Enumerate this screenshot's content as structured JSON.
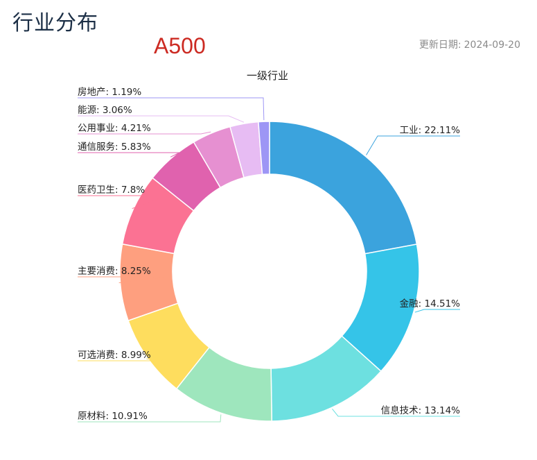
{
  "header": {
    "title": "行业分布",
    "index_name": "A500",
    "update_label": "更新日期:",
    "update_date": "2024-09-20"
  },
  "chart_data": {
    "type": "pie",
    "style": "donut",
    "title": "一级行业",
    "separator": ": ",
    "unit": "%",
    "slices": [
      {
        "label": "工业",
        "value": 22.11,
        "color": "#3ba3dd"
      },
      {
        "label": "金融",
        "value": 14.51,
        "color": "#35c4e8"
      },
      {
        "label": "信息技术",
        "value": 13.14,
        "color": "#6de0e0"
      },
      {
        "label": "原材料",
        "value": 10.91,
        "color": "#9ee6bd"
      },
      {
        "label": "可选消费",
        "value": 8.99,
        "color": "#fedd5e"
      },
      {
        "label": "主要消费",
        "value": 8.25,
        "color": "#fe9f7f"
      },
      {
        "label": "医药卫生",
        "value": 7.8,
        "color": "#fb7293"
      },
      {
        "label": "通信服务",
        "value": 5.83,
        "color": "#e062ae"
      },
      {
        "label": "公用事业",
        "value": 4.21,
        "color": "#e690d1"
      },
      {
        "label": "能源",
        "value": 3.06,
        "color": "#e7bcf3"
      },
      {
        "label": "房地产",
        "value": 1.19,
        "color": "#9d96f5"
      }
    ]
  }
}
